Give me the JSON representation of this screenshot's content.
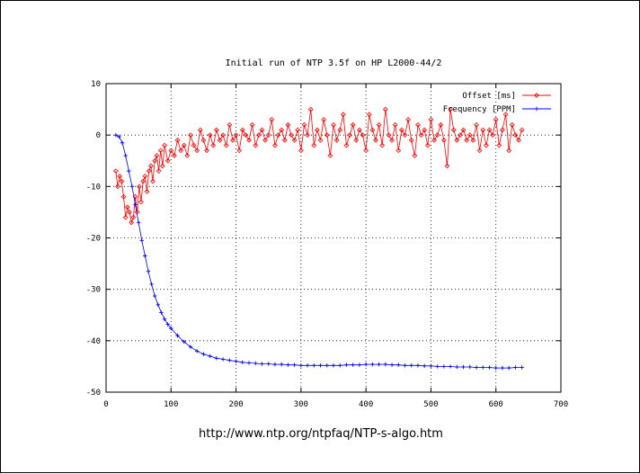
{
  "source_url": "http://www.ntp.org/ntpfaq/NTP-s-algo.htm",
  "chart_data": {
    "type": "line",
    "title": "Initial run of NTP 3.5f on HP L2000-44/2",
    "xlabel": "",
    "ylabel": "",
    "xlim": [
      0,
      700
    ],
    "ylim": [
      -50,
      10
    ],
    "xticks": [
      0,
      100,
      200,
      300,
      400,
      500,
      600,
      700
    ],
    "yticks": [
      -50,
      -40,
      -30,
      -20,
      -10,
      0,
      10
    ],
    "grid": true,
    "legend_position": "top-right",
    "series": [
      {
        "name": "Offset [ms]",
        "color": "#ff0000",
        "marker": "diamond",
        "x": [
          15,
          18,
          21,
          24,
          27,
          30,
          33,
          36,
          39,
          42,
          45,
          48,
          51,
          54,
          57,
          60,
          63,
          66,
          69,
          72,
          75,
          78,
          81,
          84,
          87,
          90,
          95,
          100,
          105,
          110,
          115,
          120,
          125,
          130,
          135,
          140,
          145,
          150,
          155,
          160,
          165,
          170,
          175,
          180,
          185,
          190,
          195,
          200,
          205,
          210,
          215,
          220,
          225,
          230,
          235,
          240,
          245,
          250,
          255,
          260,
          265,
          270,
          275,
          280,
          285,
          290,
          295,
          300,
          305,
          310,
          315,
          320,
          325,
          330,
          335,
          340,
          345,
          350,
          355,
          360,
          365,
          370,
          375,
          380,
          385,
          390,
          395,
          400,
          405,
          410,
          415,
          420,
          425,
          430,
          435,
          440,
          445,
          450,
          455,
          460,
          465,
          470,
          475,
          480,
          485,
          490,
          495,
          500,
          505,
          510,
          515,
          520,
          525,
          530,
          535,
          540,
          545,
          550,
          555,
          560,
          565,
          570,
          575,
          580,
          585,
          590,
          595,
          600,
          605,
          610,
          615,
          620,
          625,
          630,
          635,
          640
        ],
        "values": [
          -7,
          -10,
          -8,
          -9,
          -12,
          -16,
          -14,
          -15,
          -17,
          -16,
          -12,
          -15,
          -10,
          -13,
          -9,
          -8,
          -11,
          -7,
          -6,
          -9,
          -5,
          -4,
          -7,
          -3,
          -6,
          -2,
          -5,
          -3,
          -4,
          -1,
          -3,
          -2,
          -4,
          0,
          -2,
          -3,
          1,
          -1,
          -3,
          0,
          -2,
          1,
          -1,
          0,
          -2,
          2,
          -1,
          0,
          -3,
          1,
          0,
          -1,
          2,
          -2,
          0,
          1,
          -1,
          0,
          3,
          -2,
          0,
          1,
          -1,
          2,
          0,
          -1,
          1,
          -3,
          2,
          0,
          5,
          -2,
          1,
          -1,
          3,
          0,
          -4,
          2,
          -1,
          1,
          4,
          -2,
          0,
          2,
          -1,
          1,
          0,
          -3,
          4,
          1,
          -1,
          2,
          -2,
          5,
          0,
          -1,
          2,
          -3,
          1,
          0,
          3,
          -1,
          -4,
          2,
          0,
          1,
          -2,
          3,
          -1,
          0,
          2,
          -1,
          -6,
          5,
          1,
          -1,
          0,
          1,
          -1,
          0,
          -1,
          2,
          -3,
          1,
          -2,
          1,
          0,
          3,
          -2,
          1,
          4,
          -3,
          2,
          0,
          -1,
          1
        ],
        "peak_annotations": []
      },
      {
        "name": "Frequency [PPM]",
        "color": "#0000ff",
        "marker": "plus",
        "x": [
          15,
          20,
          25,
          30,
          35,
          40,
          45,
          50,
          55,
          60,
          65,
          70,
          75,
          80,
          85,
          90,
          95,
          100,
          110,
          120,
          130,
          140,
          150,
          160,
          170,
          180,
          190,
          200,
          210,
          220,
          230,
          240,
          250,
          260,
          270,
          280,
          290,
          300,
          310,
          320,
          330,
          340,
          350,
          360,
          370,
          380,
          390,
          400,
          410,
          420,
          430,
          440,
          450,
          460,
          470,
          480,
          490,
          500,
          510,
          520,
          530,
          540,
          550,
          560,
          570,
          580,
          590,
          600,
          610,
          620,
          630,
          640
        ],
        "values": [
          0,
          -0.3,
          -1.5,
          -4,
          -7,
          -10,
          -13.5,
          -17,
          -20.5,
          -23.5,
          -26.5,
          -29,
          -31.3,
          -33,
          -34.5,
          -35.8,
          -36.8,
          -37.6,
          -39,
          -40.2,
          -41.2,
          -42,
          -42.6,
          -43,
          -43.4,
          -43.6,
          -43.8,
          -44,
          -44.2,
          -44.3,
          -44.4,
          -44.5,
          -44.5,
          -44.6,
          -44.6,
          -44.7,
          -44.7,
          -44.8,
          -44.8,
          -44.8,
          -44.8,
          -44.8,
          -44.8,
          -44.8,
          -44.7,
          -44.7,
          -44.7,
          -44.6,
          -44.6,
          -44.6,
          -44.6,
          -44.7,
          -44.7,
          -44.8,
          -44.8,
          -44.8,
          -44.9,
          -44.9,
          -45,
          -45,
          -45,
          -45.1,
          -45.1,
          -45.1,
          -45.2,
          -45.2,
          -45.2,
          -45.3,
          -45.3,
          -45.3,
          -45.2,
          -45.2
        ]
      }
    ]
  }
}
